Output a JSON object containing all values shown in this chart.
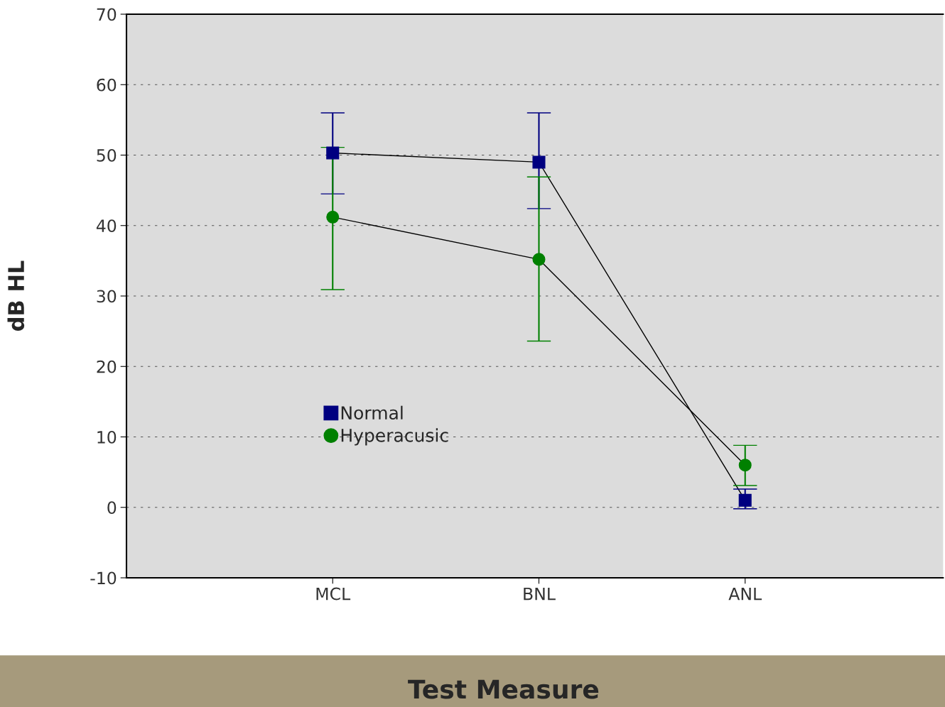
{
  "chart_data": {
    "type": "line",
    "xlabel": "Test Measure",
    "ylabel": "dB HL",
    "categories": [
      "MCL",
      "BNL",
      "ANL"
    ],
    "series": [
      {
        "name": "Normal",
        "color": "#000080",
        "marker": "square",
        "values": [
          50.3,
          49,
          1
        ],
        "errors": [
          [
            44.5,
            56
          ],
          [
            42.4,
            56
          ],
          [
            -0.2,
            2.6
          ]
        ]
      },
      {
        "name": "Hyperacusic",
        "color": "#008000",
        "marker": "circle",
        "values": [
          41.2,
          35.2,
          6
        ],
        "errors": [
          [
            30.9,
            51.1
          ],
          [
            23.6,
            46.9
          ],
          [
            3.1,
            8.8
          ]
        ]
      }
    ],
    "ylim": [
      -10,
      70
    ],
    "yticks": [
      -10,
      0,
      10,
      20,
      30,
      40,
      50,
      60,
      70
    ],
    "grid": "y",
    "legend": "left"
  }
}
